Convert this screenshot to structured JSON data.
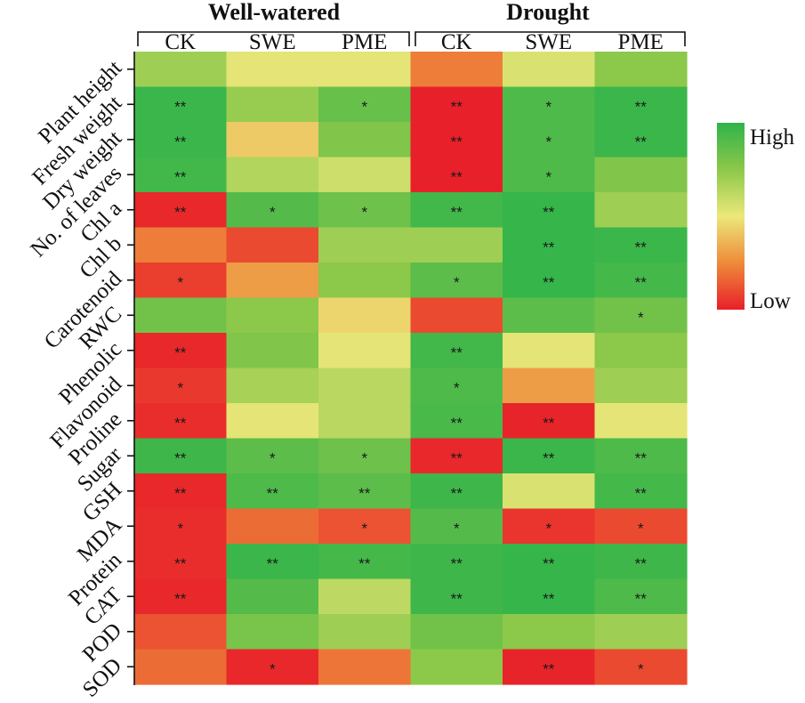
{
  "chart_data": {
    "type": "heatmap",
    "title": "",
    "groups": [
      {
        "name": "Well-watered",
        "columns": [
          "CK",
          "SWE",
          "PME"
        ]
      },
      {
        "name": "Drought",
        "columns": [
          "CK",
          "SWE",
          "PME"
        ]
      }
    ],
    "columns": [
      "CK",
      "SWE",
      "PME",
      "CK",
      "SWE",
      "PME"
    ],
    "rows": [
      "Plant height",
      "Fresh weight",
      "Dry weight",
      "No. of leaves",
      "Chl a",
      "Chl b",
      "Carotenoid",
      "RWC",
      "Phenolic",
      "Flavonoid",
      "Proline",
      "Sugar",
      "GSH",
      "MDA",
      "Protein",
      "CAT",
      "POD",
      "SOD"
    ],
    "scale": {
      "min": 0,
      "max": 1,
      "low_label": "Low",
      "high_label": "High",
      "low_color": "#e8202a",
      "mid_color": "#ece87a",
      "high_color": "#2fb34a"
    },
    "values": [
      [
        0.7,
        0.52,
        0.52,
        0.22,
        0.55,
        0.75
      ],
      [
        0.97,
        0.72,
        0.85,
        0.0,
        0.92,
        0.97
      ],
      [
        0.97,
        0.42,
        0.78,
        0.0,
        0.92,
        0.97
      ],
      [
        0.95,
        0.65,
        0.58,
        0.0,
        0.92,
        0.78
      ],
      [
        0.02,
        0.9,
        0.83,
        0.95,
        0.98,
        0.7
      ],
      [
        0.22,
        0.1,
        0.7,
        0.7,
        0.98,
        0.97
      ],
      [
        0.07,
        0.3,
        0.75,
        0.88,
        0.98,
        0.94
      ],
      [
        0.82,
        0.75,
        0.45,
        0.1,
        0.88,
        0.82
      ],
      [
        0.02,
        0.78,
        0.52,
        0.95,
        0.52,
        0.75
      ],
      [
        0.06,
        0.68,
        0.63,
        0.92,
        0.3,
        0.7
      ],
      [
        0.03,
        0.52,
        0.63,
        0.93,
        0.01,
        0.52
      ],
      [
        0.96,
        0.88,
        0.83,
        0.02,
        0.97,
        0.92
      ],
      [
        0.02,
        0.92,
        0.88,
        0.96,
        0.55,
        0.94
      ],
      [
        0.03,
        0.18,
        0.12,
        0.9,
        0.05,
        0.1
      ],
      [
        0.03,
        0.97,
        0.94,
        0.96,
        0.98,
        0.96
      ],
      [
        0.02,
        0.9,
        0.62,
        0.96,
        0.98,
        0.92
      ],
      [
        0.12,
        0.8,
        0.7,
        0.82,
        0.75,
        0.7
      ],
      [
        0.18,
        0.02,
        0.2,
        0.75,
        0.01,
        0.1
      ]
    ],
    "significance": [
      [
        "",
        "",
        "",
        "",
        "",
        ""
      ],
      [
        "**",
        "",
        "*",
        "**",
        "*",
        "**"
      ],
      [
        "**",
        "",
        "",
        "**",
        "*",
        "**"
      ],
      [
        "**",
        "",
        "",
        "**",
        "*",
        ""
      ],
      [
        "**",
        "*",
        "*",
        "**",
        "**",
        ""
      ],
      [
        "",
        "",
        "",
        "",
        "**",
        "**"
      ],
      [
        "*",
        "",
        "",
        "*",
        "**",
        "**"
      ],
      [
        "",
        "",
        "",
        "",
        "",
        "*"
      ],
      [
        "**",
        "",
        "",
        "**",
        "",
        ""
      ],
      [
        "*",
        "",
        "",
        "*",
        "",
        ""
      ],
      [
        "**",
        "",
        "",
        "**",
        "**",
        ""
      ],
      [
        "**",
        "*",
        "*",
        "**",
        "**",
        "**"
      ],
      [
        "**",
        "**",
        "**",
        "**",
        "",
        "**"
      ],
      [
        "*",
        "",
        "*",
        "*",
        "*",
        "*"
      ],
      [
        "**",
        "**",
        "**",
        "**",
        "**",
        "**"
      ],
      [
        "**",
        "",
        "",
        "**",
        "**",
        "**"
      ],
      [
        "",
        "",
        "",
        "",
        "",
        ""
      ],
      [
        "",
        "*",
        "",
        "",
        "**",
        "*"
      ]
    ]
  }
}
